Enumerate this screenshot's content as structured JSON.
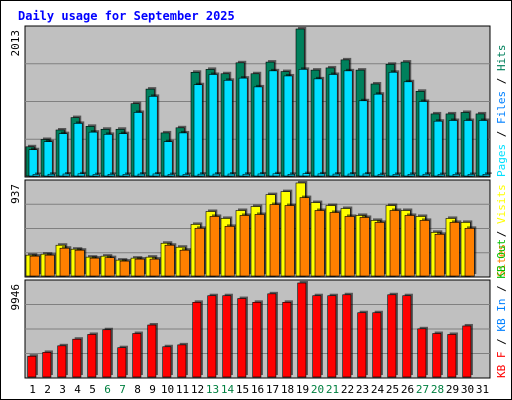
{
  "chart_data": {
    "type": "bar",
    "title": "Daily usage for September 2025",
    "colors": {
      "title": "#0000ff",
      "hits": "#00805c",
      "files": "#00e0ff",
      "pages": "#00e0ff",
      "sites": "#ff8000",
      "visits": "#ffff00",
      "kb_in": "#0080ff",
      "kb_out": "#00c000",
      "kbytes": "#ff0000",
      "weekend_label": "#008040",
      "panel_bg": "#c0c0c0"
    },
    "days": [
      "1",
      "2",
      "3",
      "4",
      "5",
      "6",
      "7",
      "8",
      "9",
      "10",
      "11",
      "12",
      "13",
      "14",
      "15",
      "16",
      "17",
      "18",
      "19",
      "20",
      "21",
      "22",
      "23",
      "24",
      "25",
      "26",
      "27",
      "28",
      "29",
      "30",
      "31"
    ],
    "weekend_days": [
      "6",
      "7",
      "13",
      "14",
      "20",
      "21",
      "27",
      "28"
    ],
    "panels": [
      {
        "id": "hits_files",
        "ymax_label": "2013",
        "ymax": 2013,
        "ylabel_parts": [
          {
            "text": "Pages",
            "color": "#00e0ff"
          },
          {
            "text": " / ",
            "color": "#000000"
          },
          {
            "text": "Files",
            "color": "#0080ff"
          },
          {
            "text": " / ",
            "color": "#000000"
          },
          {
            "text": "Hits",
            "color": "#00805c"
          }
        ],
        "series": [
          {
            "name": "Hits",
            "values": [
              400,
              500,
              630,
              800,
              680,
              640,
              640,
              990,
              1190,
              590,
              660,
              1420,
              1460,
              1400,
              1550,
              1400,
              1560,
              1430,
              2013,
              1450,
              1480,
              1590,
              1450,
              1260,
              1530,
              1560,
              1160,
              850,
              850,
              870,
              850
            ]
          },
          {
            "name": "Files",
            "values": [
              360,
              470,
              580,
              720,
              600,
              570,
              580,
              870,
              1090,
              470,
              590,
              1250,
              1390,
              1310,
              1340,
              1220,
              1440,
              1370,
              1460,
              1330,
              1390,
              1440,
              1030,
              1120,
              1420,
              1290,
              1020,
              750,
              760,
              760,
              760
            ]
          },
          {
            "name": "Pages",
            "values": [
              20,
              24,
              27,
              30,
              19,
              22,
              21,
              26,
              28,
              20,
              20,
              25,
              26,
              27,
              24,
              28,
              30,
              23,
              32,
              29,
              26,
              27,
              28,
              19,
              21,
              23,
              24,
              20,
              22,
              21,
              23
            ]
          }
        ]
      },
      {
        "id": "visits_sites",
        "ymax_label": "937",
        "ymax": 937,
        "ylabel_parts": [
          {
            "text": "Sites",
            "color": "#ff8000"
          },
          {
            "text": " / ",
            "color": "#000000"
          },
          {
            "text": "Visits",
            "color": "#ffff00"
          }
        ],
        "series": [
          {
            "name": "Visits",
            "values": [
              210,
              220,
              310,
              270,
              190,
              200,
              160,
              180,
              190,
              330,
              290,
              520,
              650,
              580,
              660,
              700,
              820,
              850,
              937,
              740,
              710,
              680,
              610,
              560,
              710,
              660,
              600,
              440,
              580,
              540,
              0
            ]
          },
          {
            "name": "Sites",
            "values": [
              200,
              210,
              280,
              260,
              180,
              185,
              150,
              170,
              170,
              310,
              260,
              480,
              600,
              500,
              610,
              620,
              720,
              710,
              790,
              660,
              640,
              600,
              590,
              540,
              660,
              610,
              560,
              420,
              540,
              480,
              0
            ]
          }
        ]
      },
      {
        "id": "kbytes",
        "ymax_label": "9946",
        "ymax": 9946,
        "ylabel_parts": [
          {
            "text": "KB F",
            "color": "#ff0000"
          },
          {
            "text": " / ",
            "color": "#000000"
          },
          {
            "text": "KB In",
            "color": "#0080ff"
          },
          {
            "text": " / ",
            "color": "#000000"
          },
          {
            "text": "KB Out",
            "color": "#00c000"
          }
        ],
        "series": [
          {
            "name": "KBytes",
            "values": [
              2200,
              2600,
              3300,
              4000,
              4500,
              5000,
              3100,
              4600,
              5500,
              3200,
              3400,
              7900,
              8600,
              8600,
              8300,
              7900,
              8800,
              7900,
              9946,
              8600,
              8600,
              8700,
              6800,
              6800,
              8700,
              8600,
              5100,
              4600,
              4500,
              5400,
              0
            ]
          }
        ]
      }
    ]
  }
}
